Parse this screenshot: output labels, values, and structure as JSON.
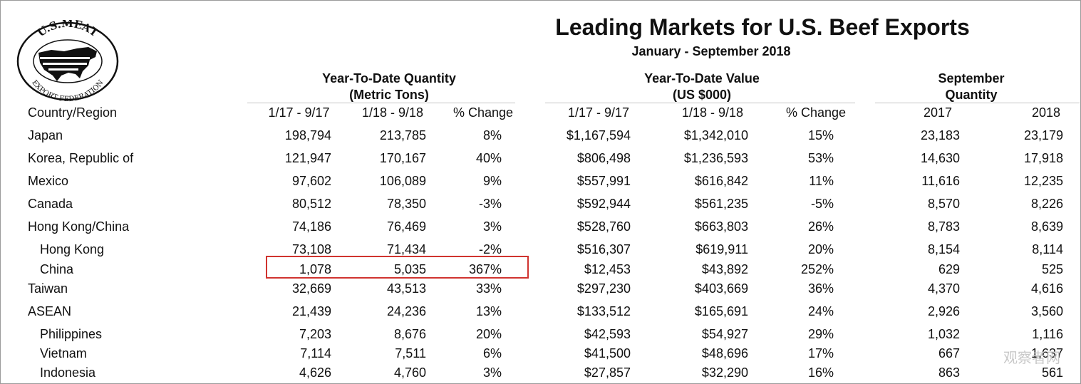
{
  "title": "Leading Markets for U.S. Beef Exports",
  "subtitle": "January - September 2018",
  "logo": {
    "top_text": "U.S.MEAT",
    "bottom_text": "EXPORT FEDERATION"
  },
  "groups": {
    "quantity": [
      "Year-To-Date Quantity",
      "(Metric Tons)"
    ],
    "value": [
      "Year-To-Date Value",
      "(US $000)"
    ],
    "september": [
      "September",
      "Quantity"
    ]
  },
  "columns": [
    "Country/Region",
    "1/17 - 9/17",
    "1/18 - 9/18",
    "% Change",
    "1/17 - 9/17",
    "1/18 - 9/18",
    "% Change",
    "2017",
    "2018"
  ],
  "rows": [
    {
      "country": "Japan",
      "sub": false,
      "values": [
        "198,794",
        "213,785",
        "8%",
        "$1,167,594",
        "$1,342,010",
        "15%",
        "23,183",
        "23,179"
      ]
    },
    {
      "country": "Korea, Republic of",
      "sub": false,
      "values": [
        "121,947",
        "170,167",
        "40%",
        "$806,498",
        "$1,236,593",
        "53%",
        "14,630",
        "17,918"
      ]
    },
    {
      "country": "Mexico",
      "sub": false,
      "values": [
        "97,602",
        "106,089",
        "9%",
        "$557,991",
        "$616,842",
        "11%",
        "11,616",
        "12,235"
      ]
    },
    {
      "country": "Canada",
      "sub": false,
      "values": [
        "80,512",
        "78,350",
        "-3%",
        "$592,944",
        "$561,235",
        "-5%",
        "8,570",
        "8,226"
      ]
    },
    {
      "country": "Hong Kong/China",
      "sub": false,
      "values": [
        "74,186",
        "76,469",
        "3%",
        "$528,760",
        "$663,803",
        "26%",
        "8,783",
        "8,639"
      ]
    },
    {
      "country": "Hong Kong",
      "sub": true,
      "values": [
        "73,108",
        "71,434",
        "-2%",
        "$516,307",
        "$619,911",
        "20%",
        "8,154",
        "8,114"
      ]
    },
    {
      "country": "China",
      "sub": true,
      "values": [
        "1,078",
        "5,035",
        "367%",
        "$12,453",
        "$43,892",
        "252%",
        "629",
        "525"
      ]
    },
    {
      "country": "Taiwan",
      "sub": false,
      "values": [
        "32,669",
        "43,513",
        "33%",
        "$297,230",
        "$403,669",
        "36%",
        "4,370",
        "4,616"
      ]
    },
    {
      "country": "ASEAN",
      "sub": false,
      "values": [
        "21,439",
        "24,236",
        "13%",
        "$133,512",
        "$165,691",
        "24%",
        "2,926",
        "3,560"
      ]
    },
    {
      "country": "Philippines",
      "sub": true,
      "values": [
        "7,203",
        "8,676",
        "20%",
        "$42,593",
        "$54,927",
        "29%",
        "1,032",
        "1,116"
      ]
    },
    {
      "country": "Vietnam",
      "sub": true,
      "values": [
        "7,114",
        "7,511",
        "6%",
        "$41,500",
        "$48,696",
        "17%",
        "667",
        "1,637"
      ]
    },
    {
      "country": "Indonesia",
      "sub": true,
      "values": [
        "4,626",
        "4,760",
        "3%",
        "$27,857",
        "$32,290",
        "16%",
        "863",
        "561"
      ]
    }
  ],
  "highlight": {
    "row": "China",
    "color": "#d0332f"
  },
  "watermark": "观察者网"
}
